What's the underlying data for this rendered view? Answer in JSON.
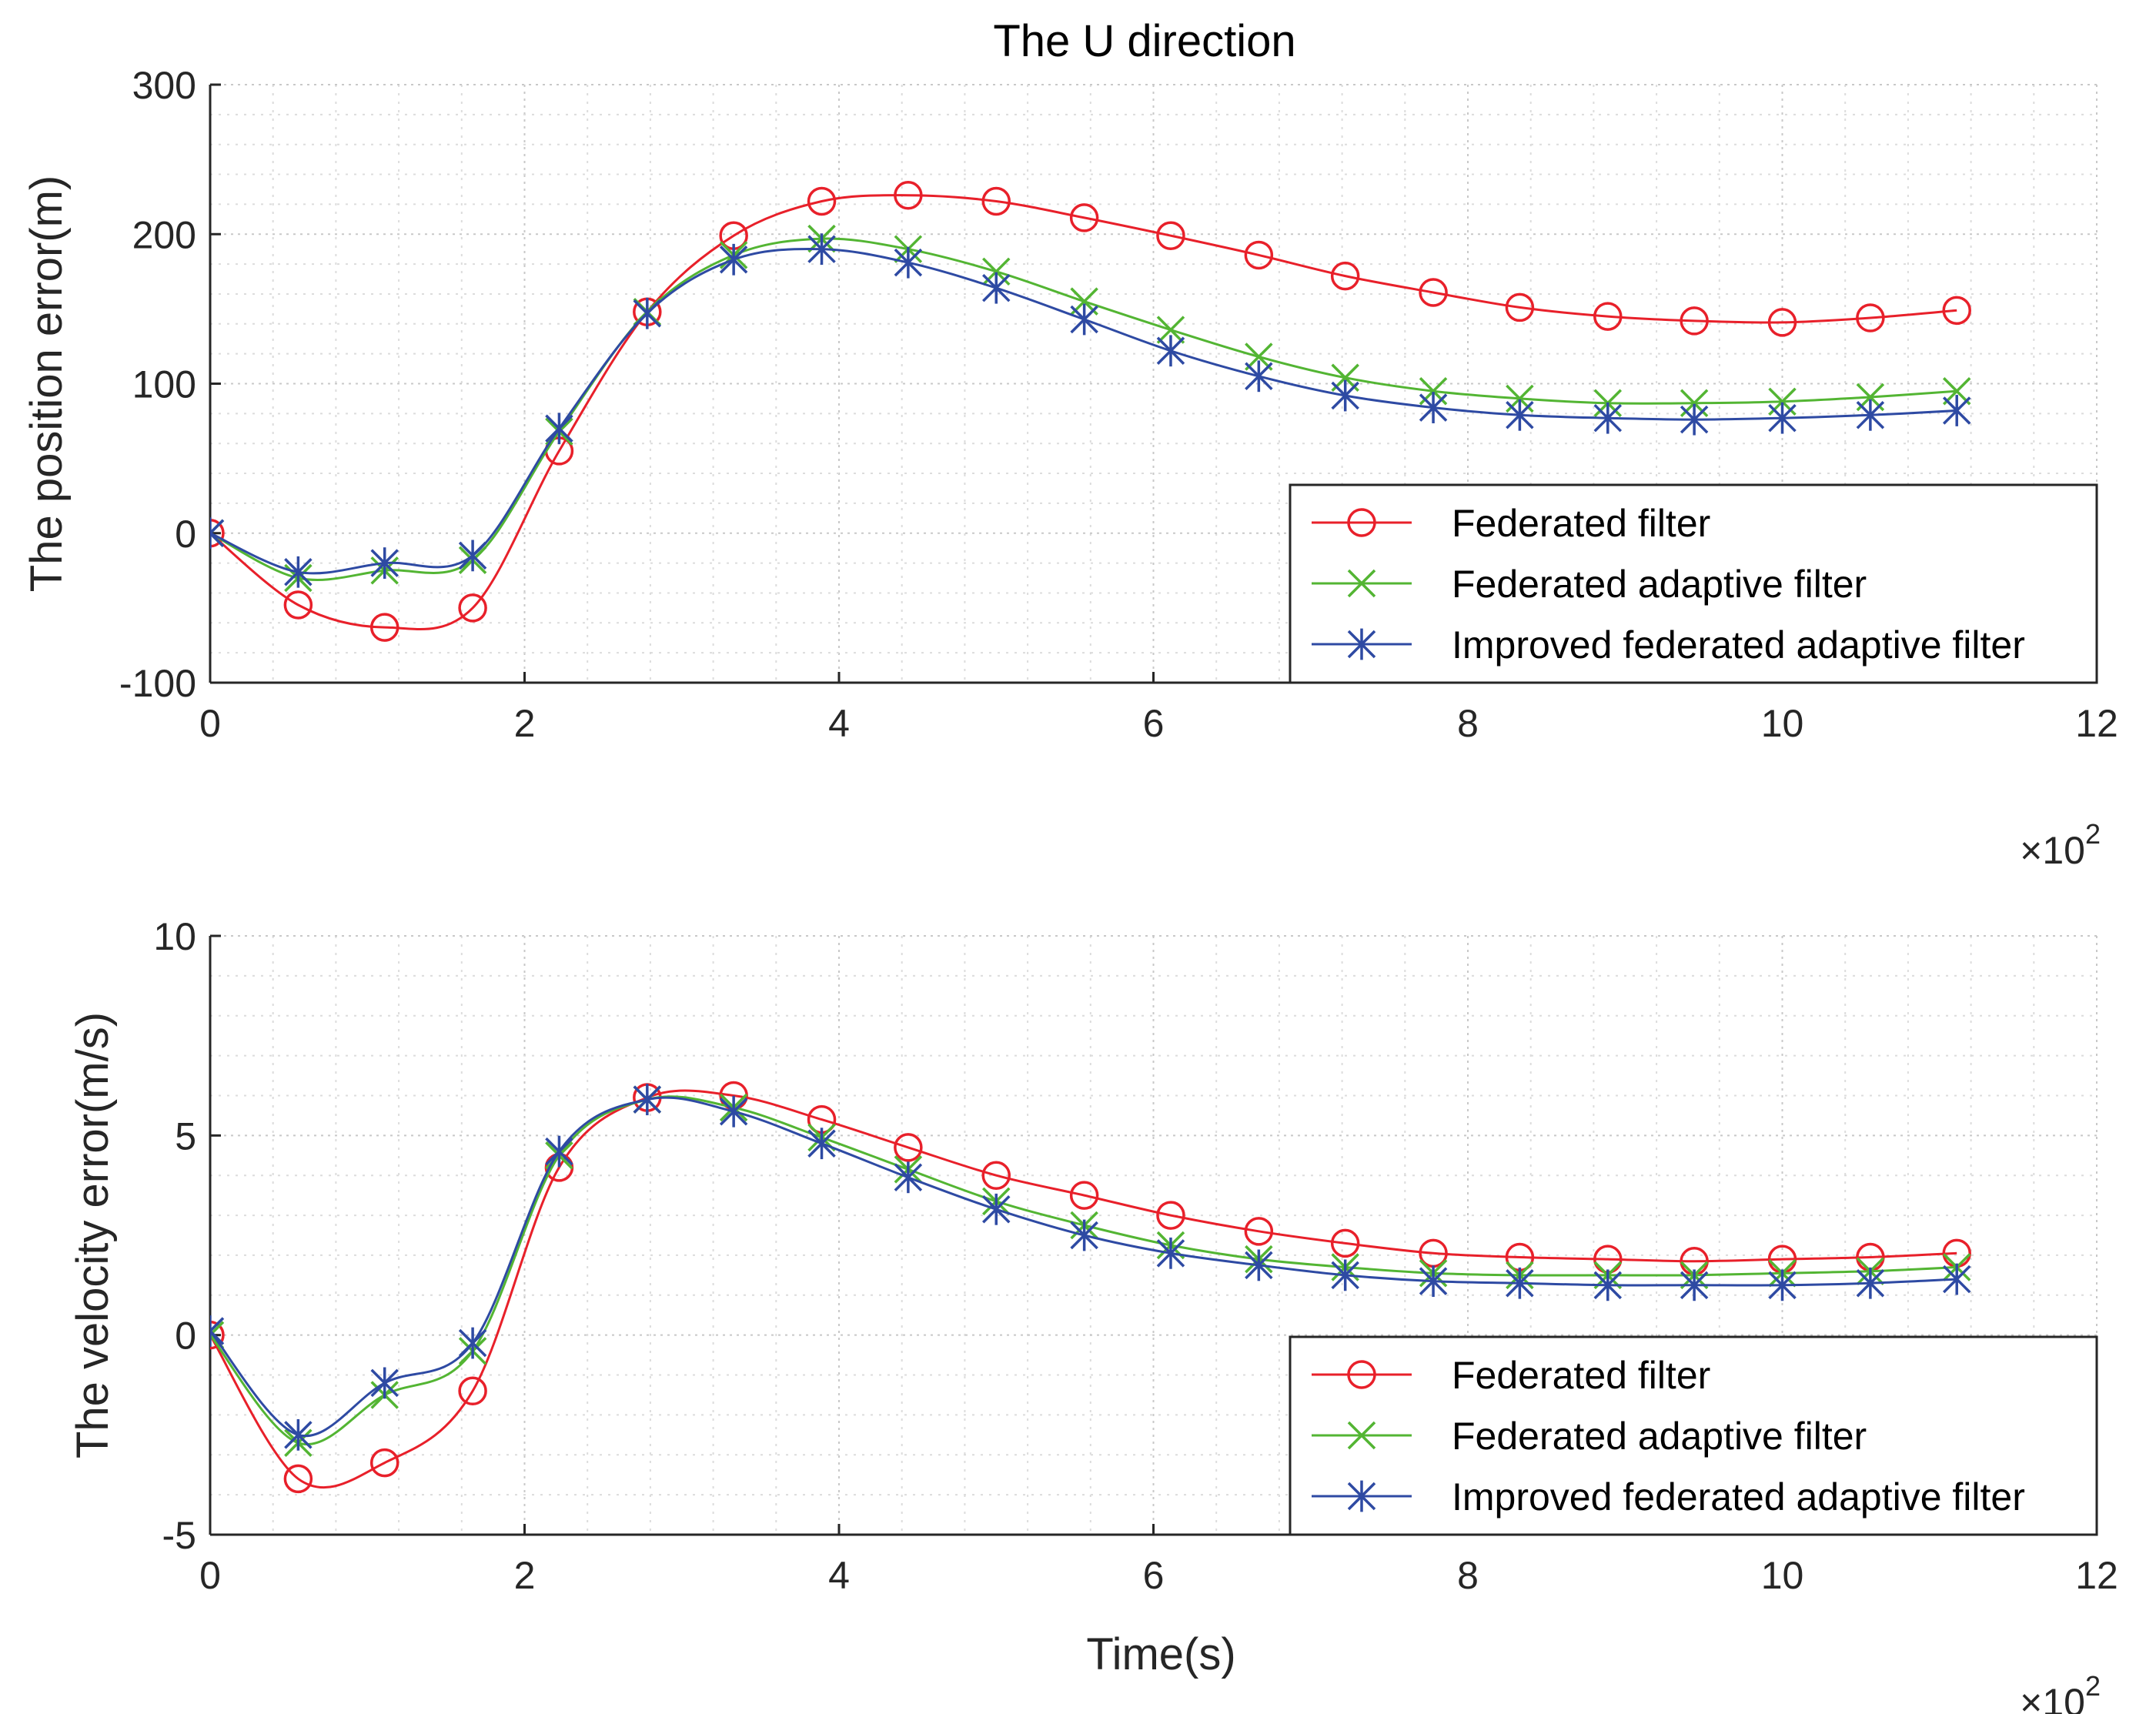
{
  "figure_title": "The U direction",
  "colors": {
    "federated": "#e8202a",
    "adaptive": "#53b533",
    "improved": "#2e4aa3"
  },
  "chart_data": [
    {
      "type": "line",
      "title": "The U direction",
      "xlabel": "",
      "ylabel": "The position error(m)",
      "x_multiplier_label": "×10",
      "x_multiplier_exp": "2",
      "xlim": [
        0,
        12
      ],
      "ylim": [
        -100,
        300
      ],
      "xticks": [
        "0",
        "2",
        "4",
        "6",
        "8",
        "10",
        "12"
      ],
      "yticks": [
        "-100",
        "0",
        "100",
        "200",
        "300"
      ],
      "grid": true,
      "legend_position": "bottom-right",
      "x": [
        0,
        0.56,
        1.11,
        1.67,
        2.22,
        2.78,
        3.33,
        3.89,
        4.44,
        5.0,
        5.56,
        6.11,
        6.67,
        7.22,
        7.78,
        8.33,
        8.89,
        9.44,
        10.0,
        10.56,
        11.11
      ],
      "series": [
        {
          "name": "Federated filter",
          "marker": "circle",
          "color_key": "federated",
          "values": [
            0,
            -48,
            -63,
            -50,
            55,
            148,
            199,
            222,
            226,
            222,
            211,
            199,
            186,
            172,
            161,
            151,
            145,
            142,
            141,
            144,
            149
          ]
        },
        {
          "name": "Federated adaptive filter",
          "marker": "x",
          "color_key": "adaptive",
          "values": [
            0,
            -30,
            -25,
            -18,
            68,
            148,
            186,
            197,
            190,
            175,
            155,
            136,
            118,
            104,
            95,
            90,
            87,
            87,
            88,
            91,
            95
          ]
        },
        {
          "name": "Improved federated adaptive filter",
          "marker": "star",
          "color_key": "improved",
          "values": [
            0,
            -26,
            -20,
            -15,
            70,
            147,
            183,
            190,
            181,
            164,
            143,
            122,
            105,
            92,
            84,
            79,
            77,
            76,
            77,
            79,
            82
          ]
        }
      ]
    },
    {
      "type": "line",
      "title": "",
      "xlabel": "Time(s)",
      "ylabel": "The velocity error(m/s)",
      "x_multiplier_label": "×10",
      "x_multiplier_exp": "2",
      "xlim": [
        0,
        12
      ],
      "ylim": [
        -5,
        10
      ],
      "xticks": [
        "0",
        "2",
        "4",
        "6",
        "8",
        "10",
        "12"
      ],
      "yticks": [
        "-5",
        "0",
        "5",
        "10"
      ],
      "grid": true,
      "legend_position": "bottom-right",
      "x": [
        0,
        0.56,
        1.11,
        1.67,
        2.22,
        2.78,
        3.33,
        3.89,
        4.44,
        5.0,
        5.56,
        6.11,
        6.67,
        7.22,
        7.78,
        8.33,
        8.89,
        9.44,
        10.0,
        10.56,
        11.11
      ],
      "series": [
        {
          "name": "Federated filter",
          "marker": "circle",
          "color_key": "federated",
          "values": [
            0,
            -3.6,
            -3.2,
            -1.4,
            4.2,
            5.95,
            6.0,
            5.4,
            4.7,
            4.0,
            3.5,
            3.0,
            2.6,
            2.3,
            2.05,
            1.95,
            1.9,
            1.85,
            1.9,
            1.95,
            2.05
          ]
        },
        {
          "name": "Federated adaptive filter",
          "marker": "x",
          "color_key": "adaptive",
          "values": [
            0,
            -2.7,
            -1.5,
            -0.4,
            4.5,
            5.9,
            5.7,
            4.95,
            4.15,
            3.35,
            2.75,
            2.25,
            1.9,
            1.7,
            1.55,
            1.5,
            1.5,
            1.5,
            1.55,
            1.6,
            1.7
          ]
        },
        {
          "name": "Improved federated adaptive filter",
          "marker": "star",
          "color_key": "improved",
          "values": [
            0.1,
            -2.5,
            -1.2,
            -0.2,
            4.6,
            5.9,
            5.6,
            4.8,
            3.95,
            3.15,
            2.5,
            2.05,
            1.75,
            1.5,
            1.35,
            1.3,
            1.25,
            1.25,
            1.25,
            1.3,
            1.4
          ]
        }
      ]
    }
  ]
}
